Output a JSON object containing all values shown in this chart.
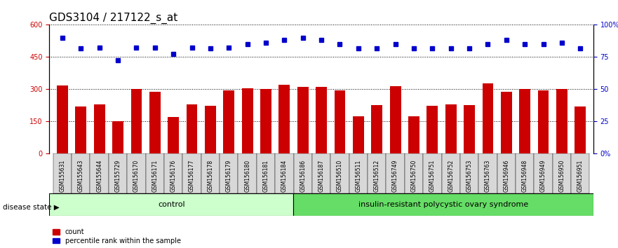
{
  "title": "GDS3104 / 217122_s_at",
  "samples": [
    "GSM155631",
    "GSM155643",
    "GSM155644",
    "GSM155729",
    "GSM156170",
    "GSM156171",
    "GSM156176",
    "GSM156177",
    "GSM156178",
    "GSM156179",
    "GSM156180",
    "GSM156181",
    "GSM156184",
    "GSM156186",
    "GSM156187",
    "GSM156510",
    "GSM156511",
    "GSM156512",
    "GSM156749",
    "GSM156750",
    "GSM156751",
    "GSM156752",
    "GSM156753",
    "GSM156763",
    "GSM156946",
    "GSM156948",
    "GSM156949",
    "GSM156950",
    "GSM156951"
  ],
  "bar_values": [
    318,
    220,
    230,
    152,
    300,
    290,
    172,
    230,
    222,
    295,
    305,
    300,
    322,
    310,
    310,
    295,
    175,
    228,
    315,
    175,
    222,
    230,
    228,
    328,
    290,
    300,
    295,
    300,
    220
  ],
  "dot_values": [
    540,
    490,
    495,
    435,
    495,
    495,
    465,
    495,
    490,
    495,
    510,
    515,
    530,
    540,
    530,
    510,
    490,
    490,
    510,
    490,
    490,
    490,
    490,
    510,
    530,
    510,
    510,
    515,
    490
  ],
  "control_count": 13,
  "disease_count": 16,
  "control_label": "control",
  "disease_label": "insulin-resistant polycystic ovary syndrome",
  "disease_state_label": "disease state",
  "ylim_left": [
    0,
    600
  ],
  "ylim_right": [
    0,
    100
  ],
  "yticks_left": [
    0,
    150,
    300,
    450,
    600
  ],
  "yticks_right": [
    0,
    25,
    50,
    75,
    100
  ],
  "ytick_labels_left": [
    "0",
    "150",
    "300",
    "450",
    "600"
  ],
  "ytick_labels_right": [
    "0%",
    "25",
    "50",
    "75",
    "100%"
  ],
  "bar_color": "#cc0000",
  "dot_color": "#0000cc",
  "control_bg": "#ccffcc",
  "disease_bg": "#66dd66",
  "legend_count_label": "count",
  "legend_pct_label": "percentile rank within the sample",
  "title_fontsize": 11,
  "tick_fontsize": 7,
  "label_fontsize": 8,
  "grid_dotted_color": "#000000"
}
